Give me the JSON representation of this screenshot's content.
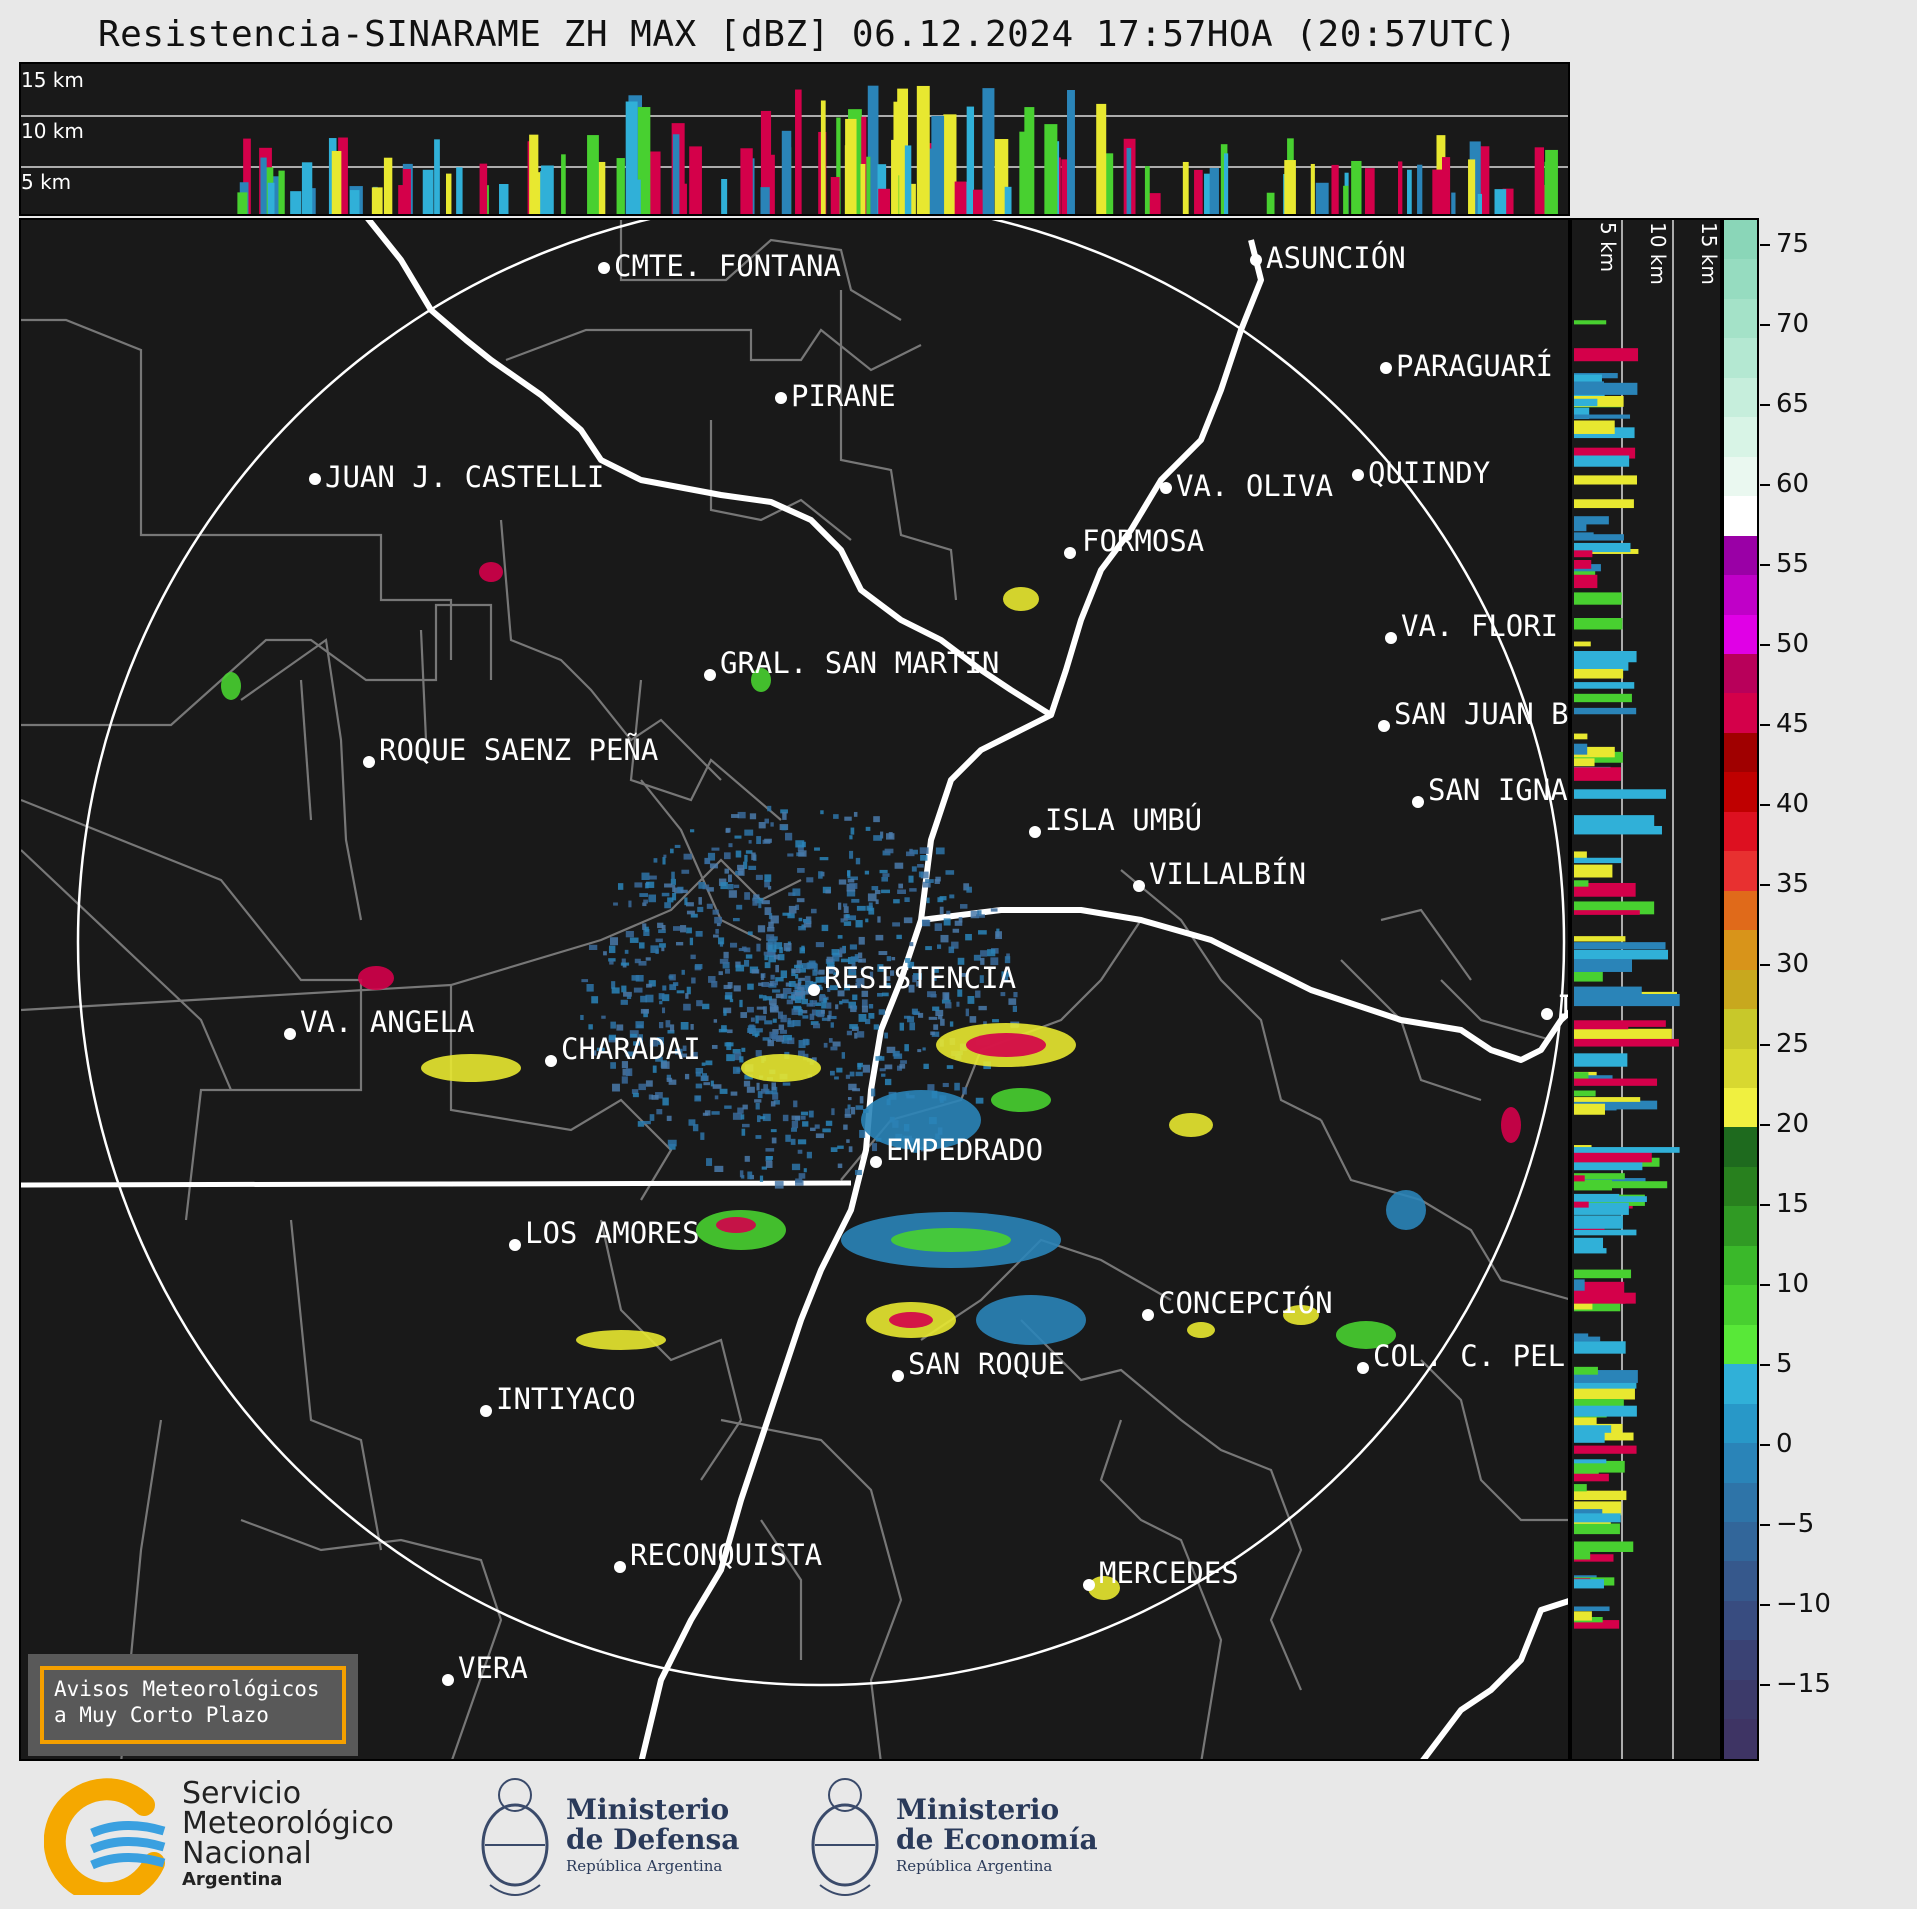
{
  "title": "Resistencia-SINARAME ZH MAX [dBZ] 06.12.2024 17:57HOA (20:57UTC)",
  "top_panel": {
    "height_labels": [
      "15 km",
      "10 km",
      "5 km"
    ]
  },
  "side_panel": {
    "height_labels": [
      "5 km",
      "10 km",
      "15 km"
    ]
  },
  "colorbar": {
    "unit": "dBZ",
    "ticks": [
      "75",
      "70",
      "65",
      "60",
      "55",
      "50",
      "45",
      "40",
      "35",
      "30",
      "25",
      "20",
      "15",
      "10",
      "5",
      "0",
      "−5",
      "−10",
      "−15"
    ],
    "segments": [
      "#8ad6b8",
      "#96dcc0",
      "#a4e2c8",
      "#b4e8d2",
      "#c6eedc",
      "#d8f4e6",
      "#eaf8f0",
      "#ffffff",
      "#9a00a6",
      "#c000c8",
      "#e000e6",
      "#b8005a",
      "#d4004a",
      "#a00000",
      "#bf0000",
      "#dd1020",
      "#e83030",
      "#e06a1a",
      "#d8941a",
      "#c8a81e",
      "#c8c82a",
      "#d8d830",
      "#f0f040",
      "#1e6a1e",
      "#28801e",
      "#309a24",
      "#3ab82a",
      "#48d030",
      "#58e838",
      "#30b0d8",
      "#2898c8",
      "#2a84b8",
      "#2e74a8",
      "#32669a",
      "#36588c",
      "#384c80",
      "#3a4274",
      "#3c3a6a",
      "#3e3464"
    ]
  },
  "cities": [
    {
      "name": "CMTE. FONTANA"
    },
    {
      "name": "ASUNCIÓN"
    },
    {
      "name": "PARAGUARÍ"
    },
    {
      "name": "PIRANE"
    },
    {
      "name": "JUAN J. CASTELLI"
    },
    {
      "name": "VA. OLIVA"
    },
    {
      "name": "QUIINDY"
    },
    {
      "name": "FORMOSA"
    },
    {
      "name": "VA. FLORI"
    },
    {
      "name": "GRAL. SAN MARTIN"
    },
    {
      "name": "SAN JUAN B"
    },
    {
      "name": "ROQUE SAENZ PEÑA"
    },
    {
      "name": "SAN IGNA"
    },
    {
      "name": "ISLA UMBÚ"
    },
    {
      "name": "VILLALBÍN"
    },
    {
      "name": "RESISTENCIA"
    },
    {
      "name": "IT"
    },
    {
      "name": "VA. ANGELA"
    },
    {
      "name": "CHARADAI"
    },
    {
      "name": "EMPEDRADO"
    },
    {
      "name": "LOS AMORES"
    },
    {
      "name": "CONCEPCIÓN"
    },
    {
      "name": "COL. C. PEL"
    },
    {
      "name": "SAN ROQUE"
    },
    {
      "name": "INTIYACO"
    },
    {
      "name": "RECONQUISTA"
    },
    {
      "name": "MERCEDES"
    },
    {
      "name": "VERA"
    }
  ],
  "notice": {
    "line1": "Avisos Meteorológicos",
    "line2": "a Muy Corto Plazo"
  },
  "footer": {
    "smn_line1": "Servicio",
    "smn_line2": "Meteorológico",
    "smn_line3": "Nacional",
    "smn_line4": "Argentina",
    "defensa_line1": "Ministerio",
    "defensa_line2": "de Defensa",
    "defensa_line3": "República Argentina",
    "economia_line1": "Ministerio",
    "economia_line2": "de Economía",
    "economia_line3": "República Argentina"
  }
}
